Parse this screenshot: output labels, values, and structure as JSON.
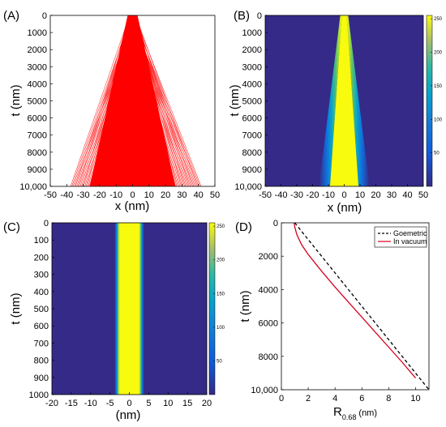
{
  "figure": {
    "panels": [
      "(A)",
      "(B)",
      "(C)",
      "(D)"
    ]
  },
  "colors": {
    "rays": "#ff0000",
    "heat_low": "#352a87",
    "heat_high": "#f9fb0e",
    "geometric_line": "#000000",
    "vacuum_line": "#d6001c"
  },
  "chart_data": [
    {
      "panel": "(A)",
      "type": "line",
      "description_of_marks": "fan of straight ray trajectories from origin",
      "xlabel": "x (nm)",
      "ylabel": "t (nm)",
      "xlim": [
        -50,
        50
      ],
      "ylim": [
        10000,
        0
      ],
      "x_ticks": [
        -50,
        -40,
        -30,
        -20,
        -10,
        0,
        10,
        20,
        30,
        40,
        50
      ],
      "y_ticks": [
        0,
        1000,
        2000,
        3000,
        4000,
        5000,
        6000,
        7000,
        8000,
        9000,
        10000
      ],
      "y_tick_labels": [
        "0",
        "1000",
        "2000",
        "3000",
        "4000",
        "5000",
        "6000",
        "7000",
        "8000",
        "9000",
        "10,000"
      ],
      "spread_at_t_max": [
        -38,
        42
      ],
      "line_color": "#ff0000"
    },
    {
      "panel": "(B)",
      "type": "heatmap",
      "xlabel": "x (nm)",
      "ylabel": "t (nm)",
      "xlim": [
        -50,
        50
      ],
      "ylim": [
        10000,
        0
      ],
      "x_ticks": [
        -50,
        -40,
        -30,
        -20,
        -10,
        0,
        10,
        20,
        30,
        40,
        50
      ],
      "y_ticks": [
        0,
        1000,
        2000,
        3000,
        4000,
        5000,
        6000,
        7000,
        8000,
        9000,
        10000
      ],
      "y_tick_labels": [
        "0",
        "1000",
        "2000",
        "3000",
        "4000",
        "5000",
        "6000",
        "7000",
        "8000",
        "9000",
        "10,000"
      ],
      "colorbar_ticks": [
        50,
        100,
        150,
        200,
        250
      ],
      "colorbar_range": [
        0,
        255
      ],
      "saturated_halfwidth_at_t0": 1.5,
      "saturated_halfwidth_at_t_max": 9,
      "edge_halfwidth_at_t_max": 16
    },
    {
      "panel": "(C)",
      "type": "heatmap",
      "xlabel": "(nm)",
      "ylabel": "t (nm)",
      "xlim": [
        -20,
        20
      ],
      "ylim": [
        1000,
        0
      ],
      "x_ticks": [
        -20,
        -15,
        -10,
        -5,
        0,
        5,
        10,
        15,
        20
      ],
      "y_ticks": [
        0,
        100,
        200,
        300,
        400,
        500,
        600,
        700,
        800,
        900,
        1000
      ],
      "colorbar_ticks": [
        50,
        100,
        150,
        200,
        250
      ],
      "colorbar_range": [
        0,
        255
      ],
      "saturated_halfwidth": 2.6,
      "edge_halfwidth": 3.8
    },
    {
      "panel": "(D)",
      "type": "line",
      "xlabel": "R",
      "xlabel_subscript": "0.68",
      "xlabel_unit": " (nm)",
      "ylabel": "t (nm)",
      "xlim": [
        0,
        11
      ],
      "ylim": [
        10000,
        0
      ],
      "x_ticks": [
        0,
        2,
        4,
        6,
        8,
        10
      ],
      "y_ticks": [
        0,
        2000,
        4000,
        6000,
        8000,
        10000
      ],
      "y_tick_labels": [
        "0",
        "2000",
        "4000",
        "6000",
        "8000",
        "10,000"
      ],
      "legend_position": "top-right",
      "series": [
        {
          "name": "Goemetric",
          "style": "dashed",
          "color": "#000000",
          "x": [
            1.0,
            11.0
          ],
          "y": [
            0,
            10000
          ]
        },
        {
          "name": "In vacuum",
          "style": "solid",
          "color": "#d6001c",
          "x": [
            0.95,
            1.0,
            1.15,
            1.5,
            2.0,
            3.0,
            4.0,
            5.0,
            6.0,
            7.0,
            8.0,
            9.0,
            10.0
          ],
          "y": [
            0,
            250,
            700,
            1300,
            1900,
            2900,
            3850,
            4750,
            5650,
            6550,
            7450,
            8350,
            9300
          ]
        }
      ]
    }
  ]
}
